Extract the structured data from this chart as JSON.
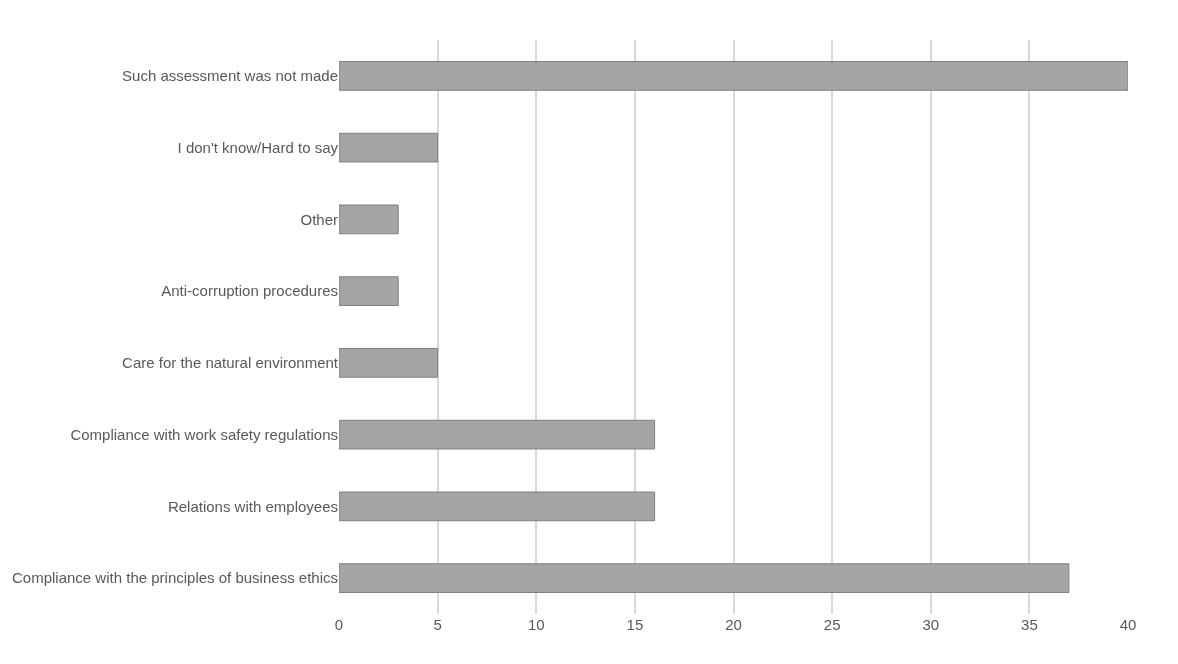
{
  "chart_data": {
    "type": "bar",
    "orientation": "horizontal",
    "categories": [
      "Such assessment was not made",
      "I don't know/Hard to say",
      "Other",
      "Anti-corruption procedures",
      "Care for the natural environment",
      "Compliance with work safety regulations",
      "Relations with employees",
      "Compliance with the principles of business ethics"
    ],
    "values": [
      40,
      5,
      3,
      3,
      5,
      16,
      16,
      37
    ],
    "color": "#a5a5a5",
    "xlim": [
      0,
      40
    ],
    "xticks": [
      0,
      5,
      10,
      15,
      20,
      25,
      30,
      35,
      40
    ],
    "grid": "x",
    "legend": false
  }
}
